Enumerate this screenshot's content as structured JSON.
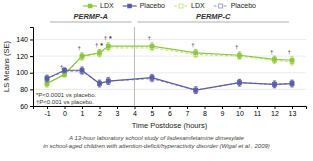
{
  "chart_data": {
    "type": "line",
    "x": [
      -1,
      0,
      1,
      2,
      2.5,
      5,
      7.5,
      10,
      12,
      13
    ],
    "xlabel": "Time Postdose (hours)",
    "ylabel": "LS Means (SE)",
    "xlim": [
      -1.8,
      13.8
    ],
    "xticks": [
      -1,
      0,
      1,
      2,
      3,
      4,
      5,
      6,
      7,
      8,
      9,
      10,
      11,
      12,
      13
    ],
    "ylim": [
      60,
      155
    ],
    "yticks": [
      60,
      80,
      100,
      120,
      140
    ],
    "grid": "y",
    "legend": "top",
    "series": [
      {
        "name": "LDX",
        "color": "#8dc63f",
        "line_style": "solid",
        "marker": "square",
        "values": [
          87,
          98,
          120,
          124,
          132,
          132,
          124,
          121,
          116,
          115
        ],
        "errors": [
          4,
          3,
          4,
          4,
          4,
          4,
          4,
          4,
          4,
          4
        ]
      },
      {
        "name": "Placebo",
        "color": "#5b5ea6",
        "line_style": "solid",
        "marker": "square",
        "values": [
          93,
          103,
          103,
          87,
          90,
          94,
          79,
          88,
          86,
          87
        ],
        "errors": [
          4,
          3,
          4,
          4,
          4,
          4,
          4,
          4,
          4,
          4
        ]
      },
      {
        "name": "LDX",
        "color": "#c8e684",
        "line_style": "dashed",
        "marker": "square-open",
        "values": [
          87,
          98,
          119,
          123,
          130,
          130,
          122,
          120,
          115,
          113
        ],
        "errors": [
          4,
          3,
          4,
          4,
          4,
          4,
          4,
          4,
          4,
          4
        ]
      },
      {
        "name": "Placebo",
        "color": "#9999cc",
        "line_style": "dashed",
        "marker": "square-open",
        "values": [
          93,
          102,
          102,
          87,
          90,
          93,
          79,
          88,
          86,
          87
        ],
        "errors": [
          4,
          3,
          4,
          4,
          4,
          4,
          4,
          4,
          4,
          4
        ]
      }
    ],
    "panels": [
      {
        "title": "PERMP-A",
        "x": [
          -1,
          4
        ]
      },
      {
        "title": "PERMP-C",
        "x": [
          4,
          13
        ]
      }
    ],
    "vlines": [
      4
    ],
    "annotations": [
      {
        "text": "*",
        "x": 2
      },
      {
        "text": "*",
        "x": 2.5
      },
      {
        "text": "†",
        "x": 0
      },
      {
        "text": "†",
        "x": 1
      },
      {
        "text": "†",
        "x": 2
      },
      {
        "text": "†",
        "x": 2.5
      },
      {
        "text": "†",
        "x": 5
      },
      {
        "text": "†",
        "x": 7.5
      },
      {
        "text": "†",
        "x": 10
      },
      {
        "text": "†",
        "x": 12
      },
      {
        "text": "†",
        "x": 13
      }
    ],
    "footnotes": [
      "*P<0.0001 vs placebo.",
      "†P<0.001 vs placebo."
    ],
    "caption": "A 13-hour laboratory school study of lisdexamfetamine dimesylate\nin school-aged children with attention-deficit/hyperactivity disorder (Wigal et al., 2009)"
  }
}
